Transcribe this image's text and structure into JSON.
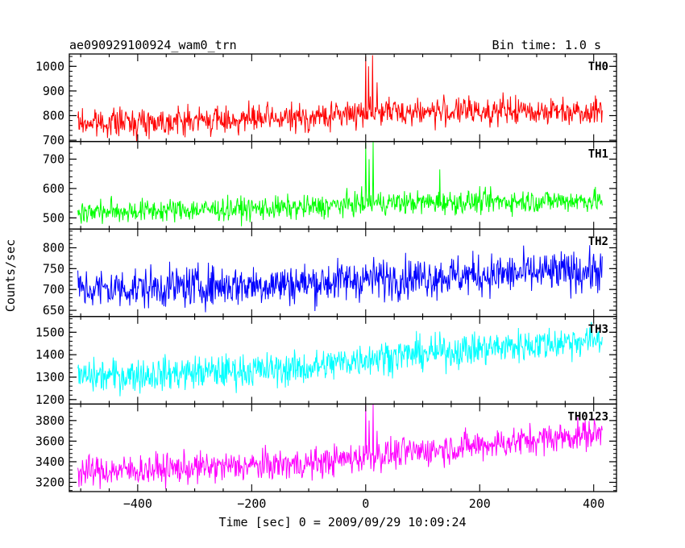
{
  "header": {
    "left_title": "ae090929100924_wam0_trn",
    "right_title": "Bin time: 1.0 s"
  },
  "chart_data": {
    "type": "line",
    "title": "ae090929100924_wam0_trn",
    "subtitle": "Bin time: 1.0 s",
    "xlabel": "Time [sec] 0 = 2009/09/29 10:09:24",
    "ylabel": "Counts/sec",
    "xlim": [
      -520,
      440
    ],
    "x_ticks": [
      -400,
      -200,
      0,
      200,
      400
    ],
    "x_tick_labels": [
      "−400",
      "−200",
      "0",
      "200",
      "400"
    ],
    "x_data_range": [
      -505,
      415
    ],
    "grid": false,
    "legend": "none",
    "panels": [
      {
        "name": "TH0",
        "color": "#ff0000",
        "ylim": [
          695,
          1050
        ],
        "y_ticks": [
          700,
          800,
          900,
          1000
        ],
        "y_tick_labels": [
          "700",
          "800",
          "900",
          "1000"
        ],
        "trend": [
          [
            -505,
            770
          ],
          [
            -100,
            790
          ],
          [
            0,
            815
          ],
          [
            415,
            820
          ]
        ],
        "noise_sd": 28,
        "spikes": [
          [
            0,
            1040
          ],
          [
            5,
            1000
          ],
          [
            12,
            1045
          ],
          [
            20,
            935
          ]
        ]
      },
      {
        "name": "TH1",
        "color": "#00ff00",
        "ylim": [
          462,
          760
        ],
        "y_ticks": [
          500,
          600,
          700
        ],
        "y_tick_labels": [
          "500",
          "600",
          "700"
        ],
        "trend": [
          [
            -505,
            520
          ],
          [
            -100,
            535
          ],
          [
            0,
            550
          ],
          [
            415,
            560
          ]
        ],
        "noise_sd": 20,
        "spikes": [
          [
            0,
            755
          ],
          [
            6,
            700
          ],
          [
            13,
            758
          ],
          [
            130,
            665
          ]
        ]
      },
      {
        "name": "TH2",
        "color": "#0000ff",
        "ylim": [
          635,
          845
        ],
        "y_ticks": [
          650,
          700,
          750,
          800
        ],
        "y_tick_labels": [
          "650",
          "700",
          "750",
          "800"
        ],
        "trend": [
          [
            -505,
            700
          ],
          [
            -100,
            715
          ],
          [
            0,
            725
          ],
          [
            415,
            745
          ]
        ],
        "noise_sd": 25,
        "spikes": []
      },
      {
        "name": "TH3",
        "color": "#00ffff",
        "ylim": [
          1180,
          1570
        ],
        "y_ticks": [
          1200,
          1300,
          1400,
          1500
        ],
        "y_tick_labels": [
          "1200",
          "1300",
          "1400",
          "1500"
        ],
        "trend": [
          [
            -505,
            1300
          ],
          [
            -100,
            1340
          ],
          [
            0,
            1385
          ],
          [
            415,
            1470
          ]
        ],
        "noise_sd": 38,
        "spikes": []
      },
      {
        "name": "TH0123",
        "color": "#ff00ff",
        "ylim": [
          3110,
          3960
        ],
        "y_ticks": [
          3200,
          3400,
          3600,
          3800
        ],
        "y_tick_labels": [
          "3200",
          "3400",
          "3600",
          "3800"
        ],
        "trend": [
          [
            -505,
            3300
          ],
          [
            -100,
            3380
          ],
          [
            0,
            3450
          ],
          [
            415,
            3680
          ]
        ],
        "noise_sd": 75,
        "spikes": [
          [
            0,
            3950
          ],
          [
            6,
            3800
          ],
          [
            13,
            3955
          ],
          [
            20,
            3700
          ]
        ]
      }
    ]
  }
}
